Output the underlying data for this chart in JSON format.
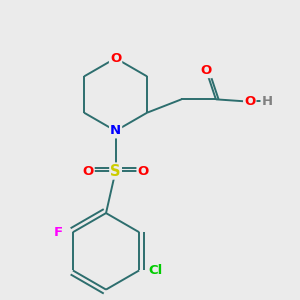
{
  "bg": "#ebebeb",
  "bond_color": "#2d6e6e",
  "bond_width": 1.4,
  "atom_colors": {
    "O": "#ff0000",
    "N": "#0000ff",
    "S": "#cccc00",
    "F": "#ff00ff",
    "Cl": "#00cc00",
    "H": "#808080"
  },
  "font_size": 9.5
}
